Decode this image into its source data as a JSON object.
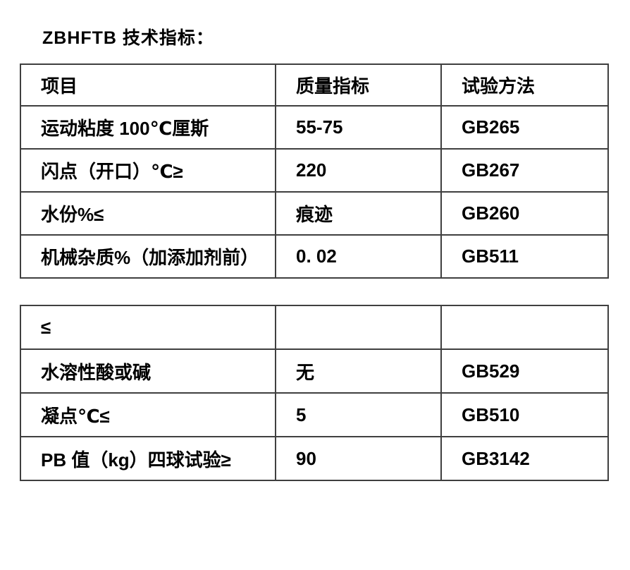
{
  "page": {
    "title": "ZBHFTB 技术指标："
  },
  "colors": {
    "background": "#ffffff",
    "border": "#3f3f3f",
    "text": "#000000"
  },
  "table1": {
    "columns": [
      "项目",
      "质量指标",
      "试验方法"
    ],
    "rows": [
      [
        "运动粘度 100℃厘斯",
        "55-75",
        "GB265"
      ],
      [
        "闪点（开口）℃≥",
        "220",
        "GB267"
      ],
      [
        "水份%≤",
        "痕迹",
        "GB260"
      ],
      [
        "机械杂质%（加添加剂前）",
        "0. 02",
        "GB511"
      ]
    ]
  },
  "table2": {
    "rows": [
      [
        "≤",
        "",
        ""
      ],
      [
        "水溶性酸或碱",
        "无",
        "GB529"
      ],
      [
        "凝点℃≤",
        "5",
        "GB510"
      ],
      [
        "PB 值（kg）四球试验≥",
        "90",
        "GB3142"
      ]
    ]
  }
}
